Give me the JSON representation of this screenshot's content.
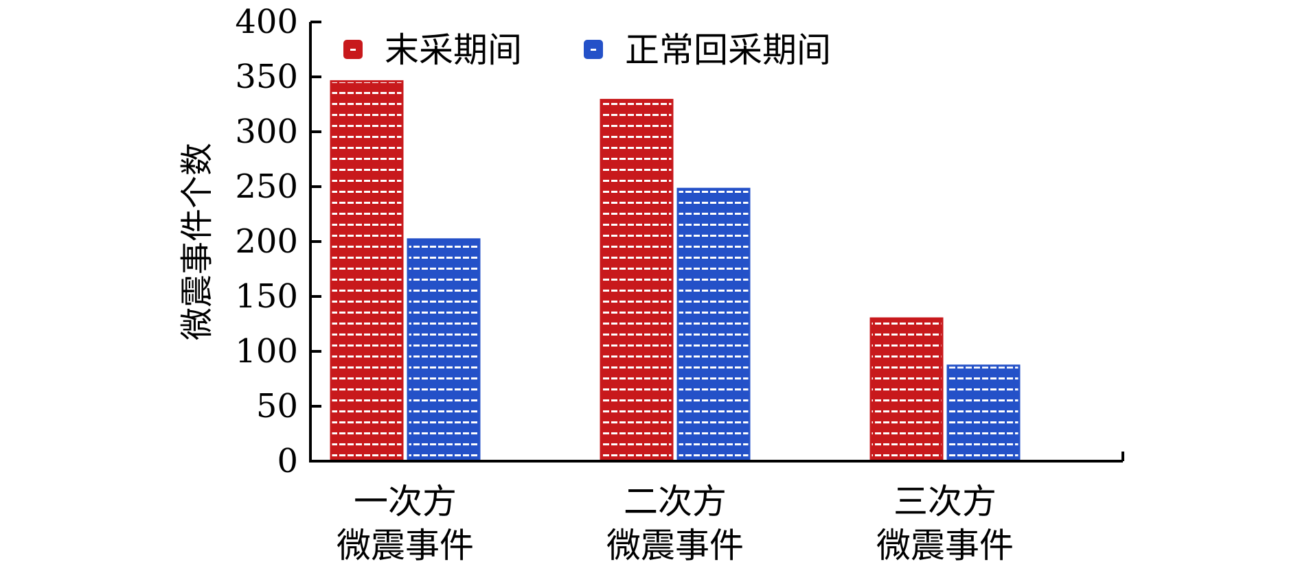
{
  "chart_data": {
    "type": "bar",
    "categories": [
      [
        "一次方",
        "微震事件"
      ],
      [
        "二次方",
        "微震事件"
      ],
      [
        "三次方",
        "微震事件"
      ]
    ],
    "series": [
      {
        "name": "末采期间",
        "values": [
          346,
          329,
          130
        ],
        "color": "#c8191c"
      },
      {
        "name": "正常回采期间",
        "values": [
          202,
          248,
          87
        ],
        "color": "#2451c8"
      }
    ],
    "title": "",
    "xlabel": "",
    "ylabel": "微震事件个数",
    "ylim": [
      0,
      400
    ],
    "yticks": [
      0,
      50,
      100,
      150,
      200,
      250,
      300,
      350,
      400
    ],
    "legend_position": "top-left",
    "grid": false,
    "pattern": "white dashed texture"
  }
}
